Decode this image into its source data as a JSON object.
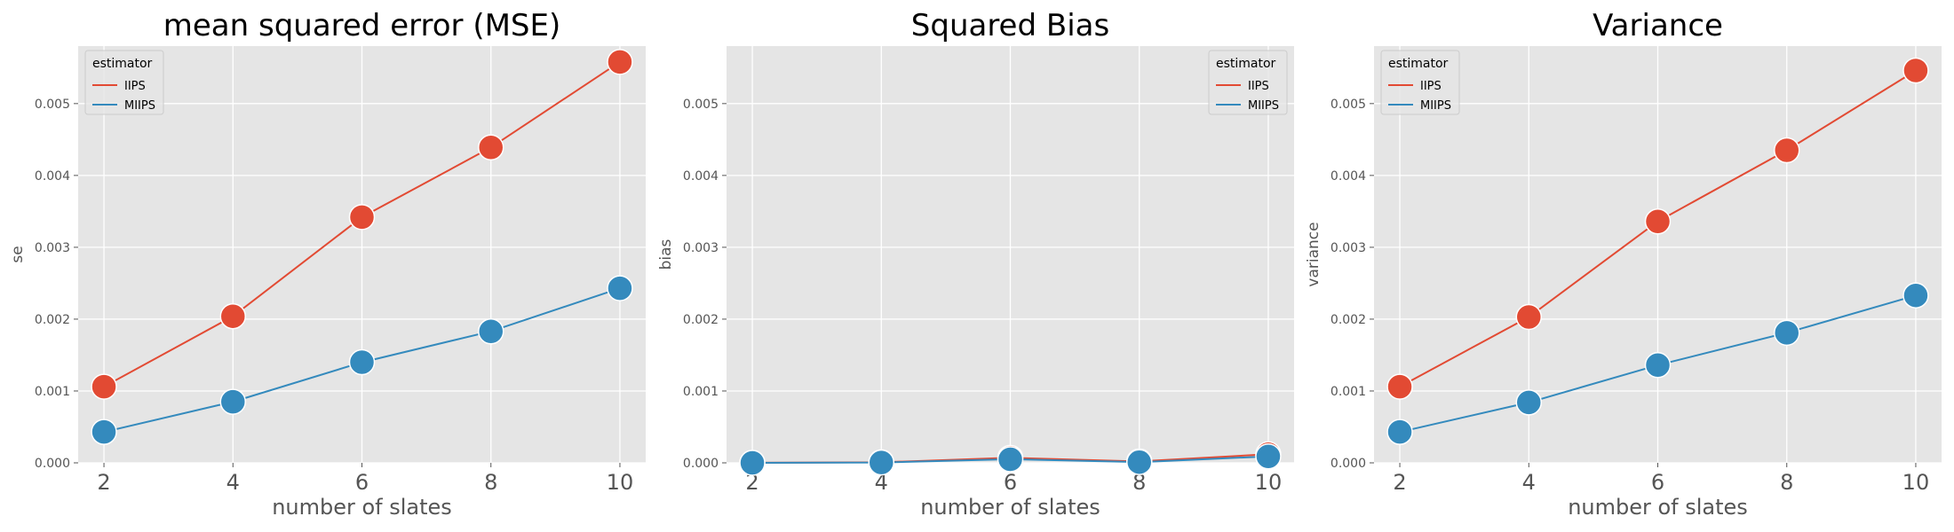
{
  "chart_data": [
    {
      "type": "line",
      "title": "mean squared error (MSE)",
      "xlabel": "number of slates",
      "ylabel": "se",
      "x": [
        2,
        4,
        6,
        8,
        10
      ],
      "xlim": [
        1.6,
        10.4
      ],
      "ylim": [
        0,
        0.0058
      ],
      "yticks": [
        "0.000",
        "0.001",
        "0.002",
        "0.003",
        "0.004",
        "0.005"
      ],
      "xticks": [
        "2",
        "4",
        "6",
        "8",
        "10"
      ],
      "grid": true,
      "legend": {
        "title": "estimator",
        "position": "top-left"
      },
      "series": [
        {
          "name": "IIPS",
          "color": "#E24A33",
          "values": [
            0.00106,
            0.00204,
            0.00342,
            0.00439,
            0.00558
          ]
        },
        {
          "name": "MIIPS",
          "color": "#348ABD",
          "values": [
            0.00043,
            0.00085,
            0.0014,
            0.00183,
            0.00243
          ]
        }
      ]
    },
    {
      "type": "line",
      "title": "Squared Bias",
      "xlabel": "number of slates",
      "ylabel": "bias",
      "x": [
        2,
        4,
        6,
        8,
        10
      ],
      "xlim": [
        1.6,
        10.4
      ],
      "ylim": [
        0,
        0.0058
      ],
      "yticks": [
        "0.000",
        "0.001",
        "0.002",
        "0.003",
        "0.004",
        "0.005"
      ],
      "xticks": [
        "2",
        "4",
        "6",
        "8",
        "10"
      ],
      "grid": true,
      "legend": {
        "title": "estimator",
        "position": "top-right"
      },
      "series": [
        {
          "name": "IIPS",
          "color": "#E24A33",
          "values": [
            1e-06,
            8e-06,
            7e-05,
            2e-05,
            0.00012
          ]
        },
        {
          "name": "MIIPS",
          "color": "#348ABD",
          "values": [
            5e-07,
            5e-06,
            5e-05,
            1e-05,
            9e-05
          ]
        }
      ]
    },
    {
      "type": "line",
      "title": "Variance",
      "xlabel": "number of slates",
      "ylabel": "variance",
      "x": [
        2,
        4,
        6,
        8,
        10
      ],
      "xlim": [
        1.6,
        10.4
      ],
      "ylim": [
        0,
        0.0058
      ],
      "yticks": [
        "0.000",
        "0.001",
        "0.002",
        "0.003",
        "0.004",
        "0.005"
      ],
      "xticks": [
        "2",
        "4",
        "6",
        "8",
        "10"
      ],
      "grid": true,
      "legend": {
        "title": "estimator",
        "position": "top-left"
      },
      "series": [
        {
          "name": "IIPS",
          "color": "#E24A33",
          "values": [
            0.00106,
            0.00203,
            0.00336,
            0.00435,
            0.00546
          ]
        },
        {
          "name": "MIIPS",
          "color": "#348ABD",
          "values": [
            0.00043,
            0.00084,
            0.00136,
            0.00181,
            0.00233
          ]
        }
      ]
    }
  ]
}
